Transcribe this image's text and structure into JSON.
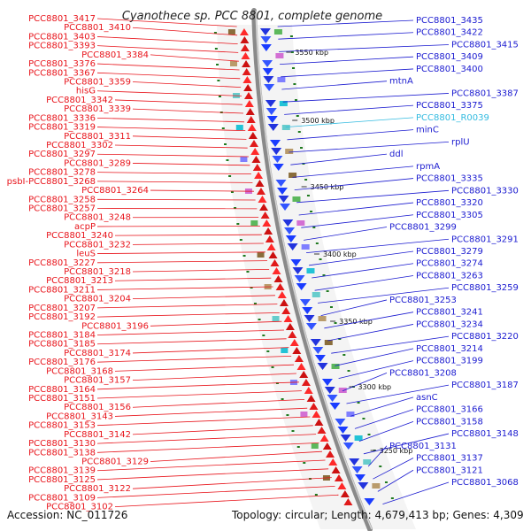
{
  "title": "Cyanothece sp. PCC 8801, complete genome",
  "accession": "Accession: NC_011726",
  "summary": "Topology: circular; Length: 4,679,413 bp; Genes: 4,309",
  "colors": {
    "left_label": "#e8141b",
    "right_label": "#1b1bd0",
    "rna_label": "#33bbe0",
    "backbone": "#8a8a8a",
    "forward_arrow": "#ff1a1a",
    "reverse_arrow": "#1a3cff",
    "cds_tick": "#1f7a1f"
  },
  "left_labels": [
    "PCC8801_3417",
    "PCC8801_3410",
    "PCC8801_3403",
    "PCC8801_3393",
    "PCC8801_3384",
    "PCC8801_3376",
    "PCC8801_3367",
    "PCC8801_3359",
    "hisG",
    "PCC8801_3342",
    "PCC8801_3339",
    "PCC8801_3336",
    "PCC8801_3319",
    "PCC8801_3311",
    "PCC8801_3302",
    "PCC8801_3297",
    "PCC8801_3289",
    "PCC8801_3278",
    "psbI-PCC8801_3268",
    "PCC8801_3264",
    "PCC8801_3258",
    "PCC8801_3257",
    "PCC8801_3248",
    "acpP",
    "PCC8801_3240",
    "PCC8801_3232",
    "leuS",
    "PCC8801_3227",
    "PCC8801_3218",
    "PCC8801_3213",
    "PCC8801_3211",
    "PCC8801_3204",
    "PCC8801_3207",
    "PCC8801_3192",
    "PCC8801_3196",
    "PCC8801_3184",
    "PCC8801_3185",
    "PCC8801_3174",
    "PCC8801_3176",
    "PCC8801_3168",
    "PCC8801_3157",
    "PCC8801_3164",
    "PCC8801_3151",
    "PCC8801_3156",
    "PCC8801_3143",
    "PCC8801_3153",
    "PCC8801_3142",
    "PCC8801_3130",
    "PCC8801_3138",
    "PCC8801_3129",
    "PCC8801_3139",
    "PCC8801_3125",
    "PCC8801_3122",
    "PCC8801_3109",
    "PCC8801_3102"
  ],
  "right_labels": [
    "PCC8801_3435",
    "PCC8801_3422",
    "PCC8801_3415",
    "PCC8801_3409",
    "PCC8801_3400",
    "mtnA",
    "PCC8801_3387",
    "PCC8801_3375",
    "PCC8801_R0039",
    "minC",
    "rplU",
    "ddl",
    "rpmA",
    "PCC8801_3335",
    "PCC8801_3330",
    "PCC8801_3320",
    "PCC8801_3305",
    "PCC8801_3299",
    "PCC8801_3291",
    "PCC8801_3279",
    "PCC8801_3274",
    "PCC8801_3263",
    "PCC8801_3259",
    "PCC8801_3253",
    "PCC8801_3241",
    "PCC8801_3234",
    "PCC8801_3220",
    "PCC8801_3214",
    "PCC8801_3199",
    "PCC8801_3208",
    "PCC8801_3187",
    "asnC",
    "PCC8801_3166",
    "PCC8801_3158",
    "PCC8801_3148",
    "PCC8801_3131",
    "PCC8801_3137",
    "PCC8801_3121",
    "PCC8801_3068"
  ],
  "position_ticks": [
    "3550 kbp",
    "3500 kbp",
    "3450 kbp",
    "3400 kbp",
    "3350 kbp",
    "3300 kbp",
    "3250 kbp"
  ]
}
